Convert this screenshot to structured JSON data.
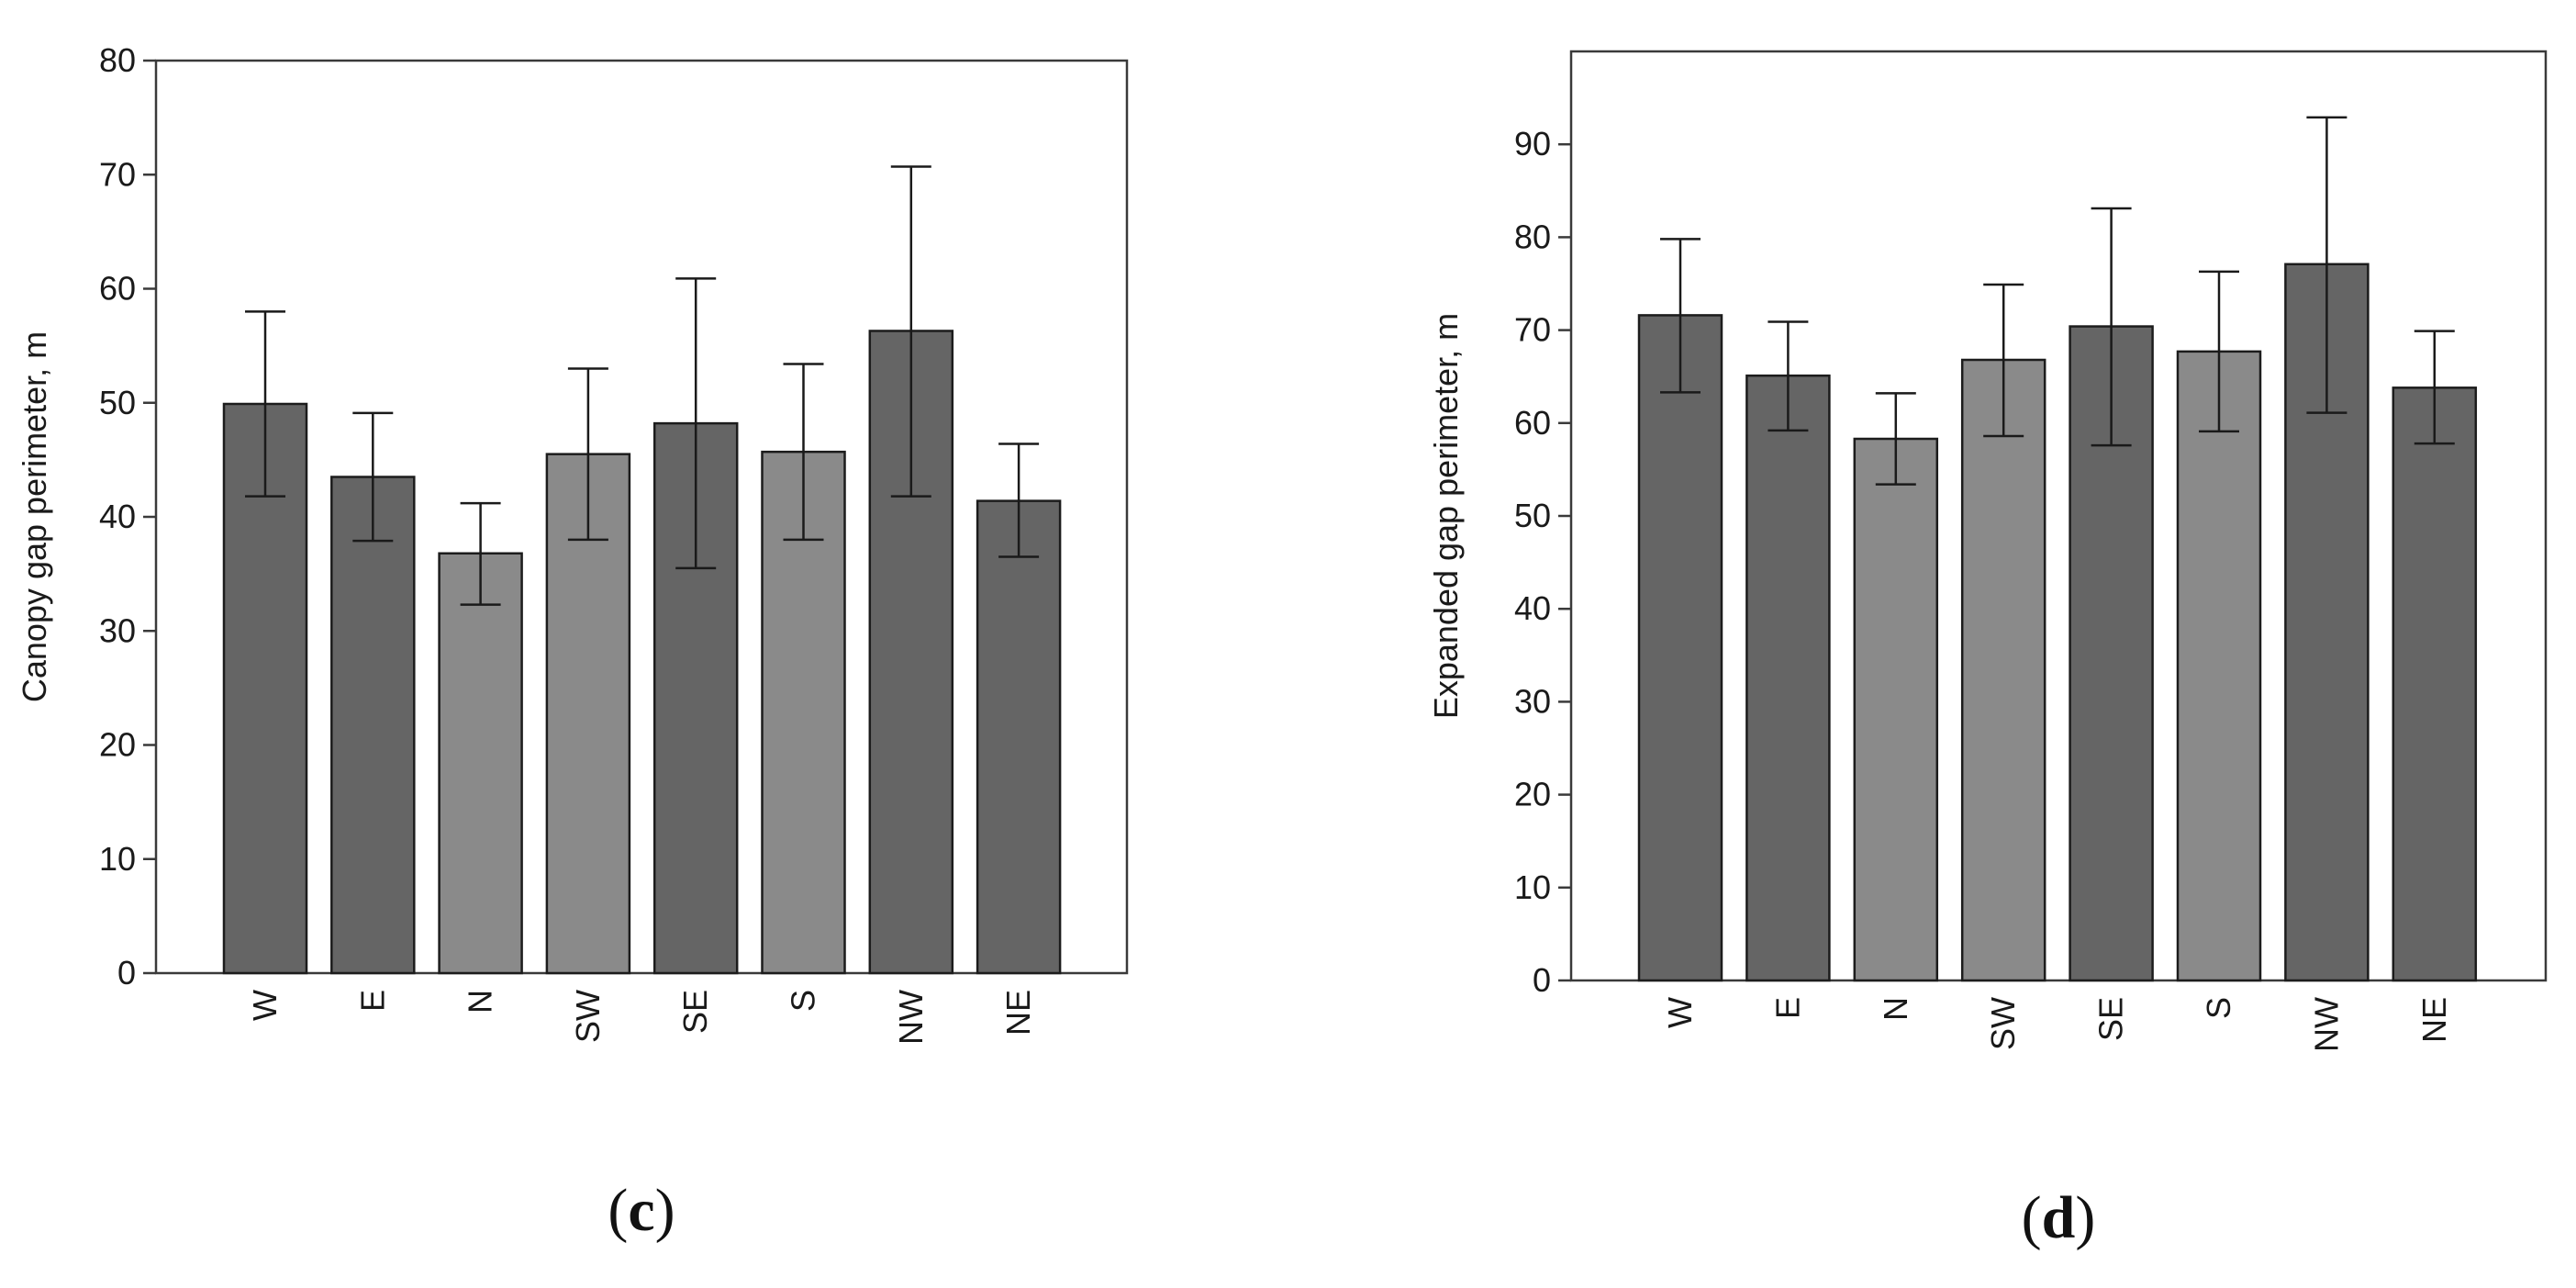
{
  "chart_data": [
    {
      "type": "bar",
      "panel_label": "(c)",
      "panel_letter": "c",
      "categories": [
        "W",
        "E",
        "N",
        "SW",
        "SE",
        "S",
        "NW",
        "NE"
      ],
      "values": [
        49.9,
        43.5,
        36.8,
        45.5,
        48.2,
        45.7,
        56.3,
        41.4
      ],
      "error_low": [
        41.8,
        37.9,
        32.3,
        38.0,
        35.5,
        38.0,
        41.8,
        36.5
      ],
      "error_high": [
        58.0,
        49.1,
        41.2,
        53.0,
        60.9,
        53.4,
        70.7,
        46.4
      ],
      "bar_colors": [
        "#656565",
        "#656565",
        "#8a8a8a",
        "#8a8a8a",
        "#656565",
        "#8a8a8a",
        "#656565",
        "#656565"
      ],
      "title": "",
      "xlabel": "",
      "ylabel": "Canopy gap perimeter, m",
      "ylim": [
        0,
        80
      ],
      "yticks": [
        0,
        10,
        20,
        30,
        40,
        50,
        60,
        70,
        80
      ],
      "ytick_labels": [
        "0",
        "10",
        "20",
        "30",
        "40",
        "50",
        "60",
        "70",
        "80"
      ],
      "grid": false,
      "tick_rotation": -90
    },
    {
      "type": "bar",
      "panel_label": "(d)",
      "panel_letter": "d",
      "categories": [
        "W",
        "E",
        "N",
        "SW",
        "SE",
        "S",
        "NW",
        "NE"
      ],
      "values": [
        71.6,
        65.1,
        58.3,
        66.8,
        70.4,
        67.7,
        77.1,
        63.8
      ],
      "error_low": [
        63.3,
        59.2,
        53.4,
        58.6,
        57.6,
        59.1,
        61.1,
        57.8
      ],
      "error_high": [
        79.8,
        70.9,
        63.2,
        74.9,
        83.1,
        76.3,
        92.9,
        69.9
      ],
      "bar_colors": [
        "#656565",
        "#656565",
        "#8a8a8a",
        "#8a8a8a",
        "#656565",
        "#8a8a8a",
        "#656565",
        "#656565"
      ],
      "title": "",
      "xlabel": "",
      "ylabel": "Expanded gap perimeter, m",
      "ylim": [
        0,
        100
      ],
      "yticks": [
        0,
        10,
        20,
        30,
        40,
        50,
        60,
        70,
        80,
        90
      ],
      "ytick_labels": [
        "0",
        "10",
        "20",
        "30",
        "40",
        "50",
        "60",
        "70",
        "80",
        "90"
      ],
      "grid": false,
      "tick_rotation": -90
    }
  ]
}
